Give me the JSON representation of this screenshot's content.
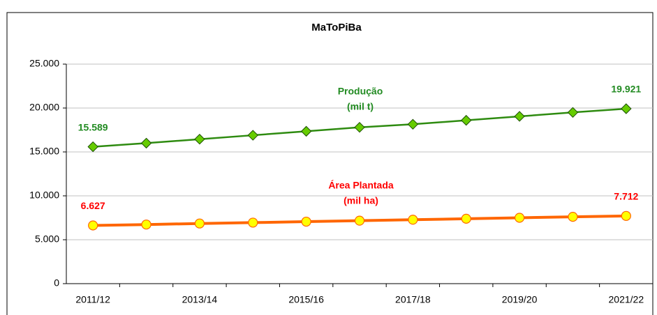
{
  "chart_data": {
    "type": "line",
    "title": "MaToPiBa",
    "categories": [
      "2011/12",
      null,
      "2013/14",
      null,
      "2015/16",
      null,
      "2017/18",
      null,
      "2019/20",
      null,
      "2021/22"
    ],
    "series": [
      {
        "name": "Produção",
        "unit": "(mil t)",
        "color": "#2e8b10",
        "marker_color": "#66cc00",
        "label_color": "#228b22",
        "marker": "diamond",
        "values": [
          15589,
          16000,
          16450,
          16900,
          17350,
          17800,
          18150,
          18600,
          19050,
          19500,
          19921
        ],
        "value_labels": [
          "15.589",
          null,
          null,
          null,
          null,
          null,
          null,
          null,
          null,
          null,
          "19.921"
        ]
      },
      {
        "name": "Área Plantada",
        "unit": "(mil ha)",
        "color": "#ff6600",
        "marker_color": "#ffff00",
        "label_color": "#ff0000",
        "marker": "circle",
        "values": [
          6627,
          6730,
          6850,
          6950,
          7060,
          7170,
          7280,
          7390,
          7500,
          7610,
          7712
        ],
        "value_labels": [
          "6.627",
          null,
          null,
          null,
          null,
          null,
          null,
          null,
          null,
          null,
          "7.712"
        ]
      }
    ],
    "ylim": [
      0,
      25000
    ],
    "yticks": [
      0,
      {
        "value": 5000,
        "label": "5.000"
      },
      {
        "value": 10000,
        "label": "10.000"
      },
      {
        "value": 15000,
        "label": "15.000"
      },
      {
        "value": 20000,
        "label": "20.000"
      },
      {
        "value": 25000,
        "label": "25.000"
      }
    ],
    "grid": true
  }
}
